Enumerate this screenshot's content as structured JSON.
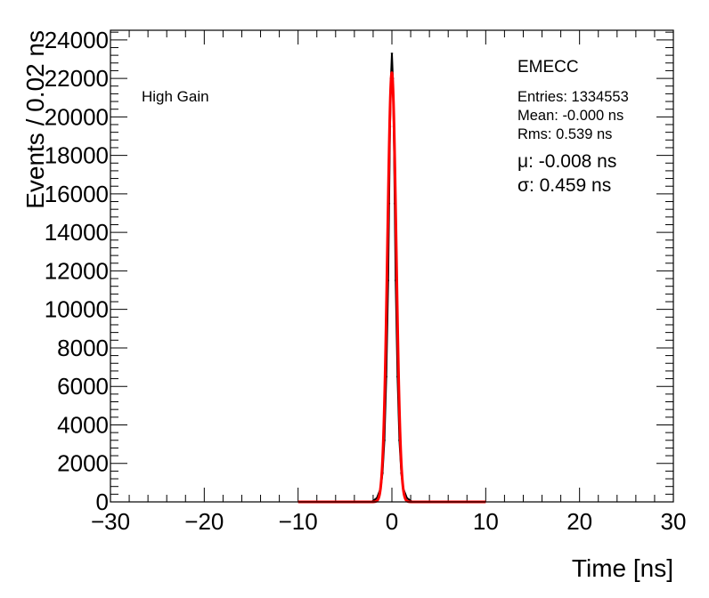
{
  "chart_data": {
    "type": "histogram",
    "xlabel": "Time [ns]",
    "ylabel": "Events / 0.02 ns",
    "xlim": [
      -30,
      30
    ],
    "ylim": [
      0,
      24500
    ],
    "x_ticks": [
      -30,
      -20,
      -10,
      0,
      10,
      20,
      30
    ],
    "y_ticks": [
      0,
      2000,
      4000,
      6000,
      8000,
      10000,
      12000,
      14000,
      16000,
      18000,
      20000,
      22000,
      24000
    ],
    "x_tick_labels": [
      "−30",
      "−20",
      "−10",
      "0",
      "10",
      "20",
      "30"
    ],
    "y_tick_labels": [
      "0",
      "2000",
      "4000",
      "6000",
      "8000",
      "10000",
      "12000",
      "14000",
      "16000",
      "18000",
      "20000",
      "22000",
      "24000"
    ],
    "grid": false,
    "series": [
      {
        "kind": "data",
        "color": "#000000",
        "x": [
          -2.0,
          -1.6,
          -1.2,
          -1.0,
          -0.8,
          -0.6,
          -0.4,
          -0.3,
          -0.2,
          -0.1,
          0.0,
          0.1,
          0.2,
          0.3,
          0.4,
          0.6,
          0.8,
          1.0,
          1.2,
          1.6,
          2.0
        ],
        "y": [
          60,
          200,
          700,
          1500,
          3200,
          6500,
          11500,
          15500,
          19500,
          22000,
          23300,
          22000,
          19500,
          15500,
          11500,
          6500,
          3200,
          1500,
          700,
          200,
          60
        ]
      },
      {
        "kind": "fit",
        "color": "#ff0000",
        "function": "gaussian",
        "mean": -0.008,
        "sigma": 0.459,
        "amplitude": 22300,
        "range": [
          -10,
          10
        ]
      }
    ],
    "annotations": {
      "gain_label": "High Gain",
      "detector_label": "EMECC",
      "entries": "Entries: 1334553",
      "mean": "Mean: -0.000 ns",
      "rms": "Rms: 0.539 ns",
      "fit_mu": "μ: -0.008 ns",
      "fit_sigma": "σ: 0.459 ns"
    }
  }
}
